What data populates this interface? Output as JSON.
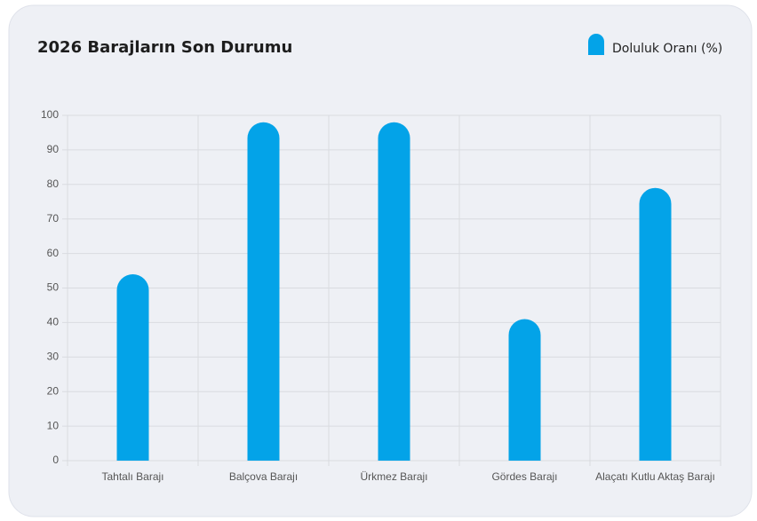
{
  "chart_data": {
    "type": "bar",
    "title": "2026 Barajların Son Durumu",
    "categories": [
      "Tahtalı Barajı",
      "Balçova Barajı",
      "Ürkmez Barajı",
      "Gördes Barajı",
      "Alaçatı Kutlu Aktaş Barajı"
    ],
    "series": [
      {
        "name": "Doluluk Oranı (%)",
        "color": "#03a3e8",
        "values": [
          54,
          98,
          98,
          41,
          79
        ]
      }
    ],
    "ylim": [
      0,
      100
    ],
    "yticks": [
      0,
      10,
      20,
      30,
      40,
      50,
      60,
      70,
      80,
      90,
      100
    ],
    "grid": true,
    "legend": "top-right"
  }
}
